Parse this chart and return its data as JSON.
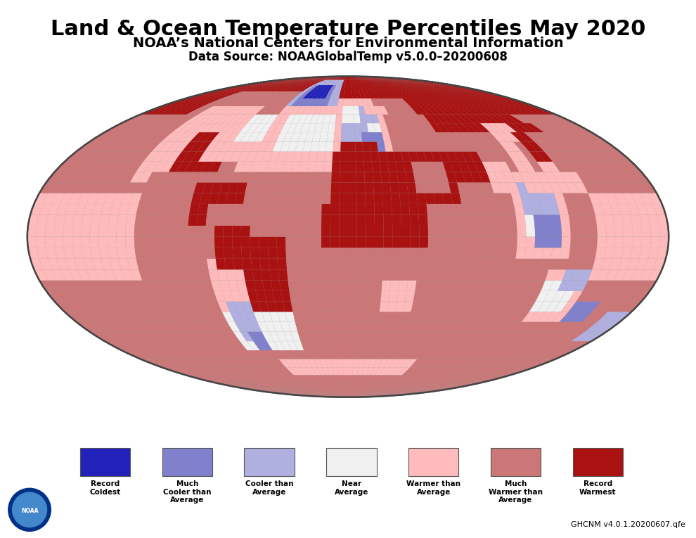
{
  "title": "Land & Ocean Temperature Percentiles May 2020",
  "subtitle": "NOAA’s National Centers for Environmental Information",
  "datasource": "Data Source: NOAAGlobalTemp v5.0.0–20200608",
  "version_text": "GHCNM v4.0.1.20200607.qfe",
  "legend_items": [
    {
      "label": "Record\nColdest",
      "color": "#2222bb"
    },
    {
      "label": "Much\nCooler than\nAverage",
      "color": "#8080cc"
    },
    {
      "label": "Cooler than\nAverage",
      "color": "#b0b0e0"
    },
    {
      "label": "Near\nAverage",
      "color": "#f0f0f0"
    },
    {
      "label": "Warmer than\nAverage",
      "color": "#ffbbbb"
    },
    {
      "label": "Much\nWarmer than\nAverage",
      "color": "#cc7777"
    },
    {
      "label": "Record\nWarmest",
      "color": "#aa1111"
    }
  ],
  "background_color": "#ffffff",
  "map_bg_color": "#999999",
  "title_fontsize": 22,
  "subtitle_fontsize": 14,
  "datasource_fontsize": 12
}
